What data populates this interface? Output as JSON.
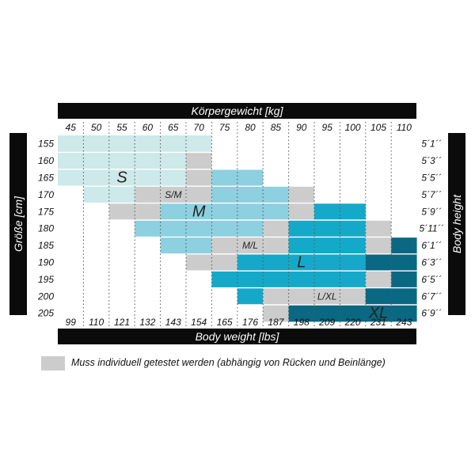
{
  "chart_data": {
    "type": "heatmap",
    "top_axis_title": "Körpergewicht [kg]",
    "bottom_axis_title": "Body weight [lbs]",
    "left_axis_title": "Größe [cm]",
    "right_axis_title": "Body height",
    "kg": [
      "45",
      "50",
      "55",
      "60",
      "65",
      "70",
      "75",
      "80",
      "85",
      "90",
      "95",
      "100",
      "105",
      "110"
    ],
    "lbs": [
      "99",
      "110",
      "121",
      "132",
      "143",
      "154",
      "165",
      "176",
      "187",
      "198",
      "209",
      "220",
      "231",
      "243"
    ],
    "height_cm": [
      "155",
      "160",
      "165",
      "170",
      "175",
      "180",
      "185",
      "190",
      "195",
      "200",
      "205"
    ],
    "height_ft": [
      "5´1´´",
      "5´3´´",
      "5´5´´",
      "5´7´´",
      "5´9´´",
      "5´11´´",
      "6´1´´",
      "6´3´´",
      "6´5´´",
      "6´7´´",
      "6´9´´"
    ],
    "colors": {
      "S": "#cde9ea",
      "M": "#8dd0df",
      "L": "#15a9c9",
      "XL": "#0b6882",
      "gray": "#cccccc"
    },
    "rows": [
      {
        "height": "155",
        "segments": [
          [
            "S",
            "45",
            "70"
          ]
        ]
      },
      {
        "height": "160",
        "segments": [
          [
            "S",
            "45",
            "65"
          ],
          [
            "gray",
            "70",
            "70"
          ]
        ]
      },
      {
        "height": "165",
        "segments": [
          [
            "S",
            "45",
            "65"
          ],
          [
            "gray",
            "70",
            "70"
          ],
          [
            "M",
            "75",
            "80"
          ]
        ]
      },
      {
        "height": "170",
        "segments": [
          [
            "S",
            "50",
            "55"
          ],
          [
            "gray",
            "60",
            "70"
          ],
          [
            "M",
            "75",
            "85"
          ],
          [
            "gray",
            "90",
            "90"
          ]
        ]
      },
      {
        "height": "175",
        "segments": [
          [
            "gray",
            "55",
            "60"
          ],
          [
            "M",
            "65",
            "85"
          ],
          [
            "gray",
            "90",
            "90"
          ],
          [
            "L",
            "95",
            "100"
          ]
        ]
      },
      {
        "height": "180",
        "segments": [
          [
            "M",
            "60",
            "80"
          ],
          [
            "gray",
            "85",
            "85"
          ],
          [
            "L",
            "90",
            "100"
          ],
          [
            "gray",
            "105",
            "105"
          ]
        ]
      },
      {
        "height": "185",
        "segments": [
          [
            "M",
            "65",
            "70"
          ],
          [
            "gray",
            "75",
            "85"
          ],
          [
            "L",
            "90",
            "100"
          ],
          [
            "gray",
            "105",
            "105"
          ],
          [
            "XL",
            "110",
            "110"
          ]
        ]
      },
      {
        "height": "190",
        "segments": [
          [
            "gray",
            "70",
            "75"
          ],
          [
            "L",
            "80",
            "100"
          ],
          [
            "XL",
            "105",
            "110"
          ]
        ]
      },
      {
        "height": "195",
        "segments": [
          [
            "L",
            "75",
            "100"
          ],
          [
            "gray",
            "105",
            "105"
          ],
          [
            "XL",
            "110",
            "110"
          ]
        ]
      },
      {
        "height": "200",
        "segments": [
          [
            "L",
            "80",
            "80"
          ],
          [
            "gray",
            "85",
            "100"
          ],
          [
            "XL",
            "105",
            "110"
          ]
        ]
      },
      {
        "height": "205",
        "segments": [
          [
            "gray",
            "85",
            "85"
          ],
          [
            "XL",
            "90",
            "110"
          ]
        ]
      }
    ],
    "size_labels": [
      {
        "text": "S",
        "height": "165",
        "kg": "55"
      },
      {
        "text": "S/M",
        "height": "170",
        "kg": "65"
      },
      {
        "text": "M",
        "height": "175",
        "kg": "70"
      },
      {
        "text": "M/L",
        "height": "185",
        "kg": "80"
      },
      {
        "text": "L",
        "height": "190",
        "kg": "90"
      },
      {
        "text": "L/XL",
        "height": "200",
        "kg": "95"
      },
      {
        "text": "XL",
        "height": "205",
        "kg": "105"
      }
    ],
    "grid": "dotted vertical lines",
    "legend_text": "Muss individuell getestet werden (abhängig von Rücken und Beinlänge)"
  }
}
